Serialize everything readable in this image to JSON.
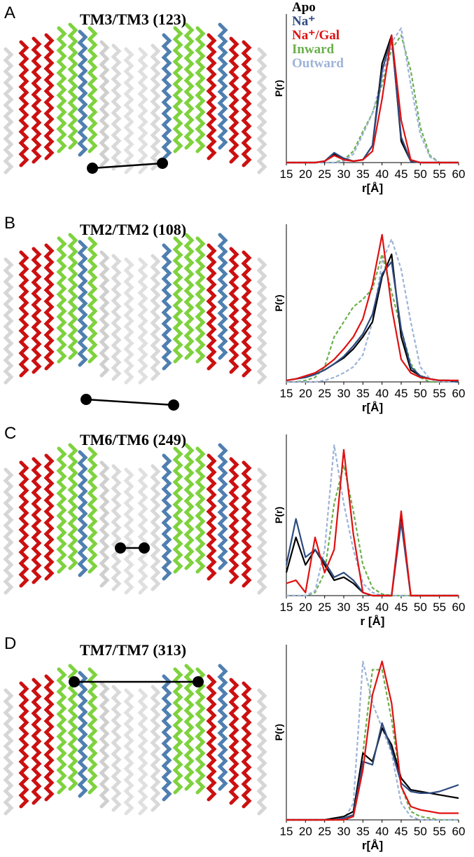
{
  "chart_data": [
    {
      "type": "line",
      "panel": "A",
      "title": "TM3/TM3 (123)",
      "x_label": "r[Å]",
      "y_label": "P(r)",
      "legend": "top-left",
      "x": [
        15,
        17.5,
        20,
        22.5,
        25,
        27.5,
        30,
        32.5,
        35,
        37.5,
        40,
        42.5,
        45,
        47.5,
        50,
        52.5,
        55,
        57.5,
        60
      ],
      "xlim": [
        15,
        60
      ],
      "xticks": [
        15,
        20,
        25,
        30,
        35,
        40,
        45,
        50,
        55,
        60
      ],
      "ylim": [
        0,
        1.05
      ],
      "series": [
        {
          "name": "Apo",
          "color": "#000000",
          "dash": false,
          "values": [
            0,
            0,
            0,
            0,
            0.01,
            0.06,
            0.03,
            0.01,
            0.02,
            0.12,
            0.7,
            0.9,
            0.15,
            0.01,
            0,
            0,
            0,
            0,
            0
          ]
        },
        {
          "name": "Na⁺",
          "color": "#2e4a80",
          "dash": false,
          "values": [
            0,
            0,
            0,
            0,
            0.01,
            0.07,
            0.03,
            0.01,
            0.02,
            0.12,
            0.65,
            0.88,
            0.18,
            0.01,
            0,
            0,
            0,
            0,
            0
          ]
        },
        {
          "name": "Na⁺/Gal",
          "color": "#e01010",
          "dash": false,
          "values": [
            0,
            0,
            0,
            0,
            0.01,
            0.05,
            0.02,
            0.01,
            0.02,
            0.08,
            0.45,
            0.9,
            0.3,
            0.02,
            0,
            0,
            0,
            0,
            0
          ]
        },
        {
          "name": "Inward",
          "color": "#6ab04c",
          "dash": true,
          "values": [
            0,
            0,
            0,
            0,
            0,
            0,
            0.02,
            0.08,
            0.22,
            0.35,
            0.55,
            0.8,
            0.9,
            0.65,
            0.25,
            0.05,
            0,
            0,
            0
          ]
        },
        {
          "name": "Outward",
          "color": "#9db3d8",
          "dash": true,
          "values": [
            0,
            0,
            0,
            0,
            0,
            0,
            0.01,
            0.06,
            0.2,
            0.35,
            0.6,
            0.85,
            0.95,
            0.55,
            0.2,
            0.04,
            0,
            0,
            0
          ]
        }
      ]
    },
    {
      "type": "line",
      "panel": "B",
      "title": "TM2/TM2 (108)",
      "x_label": "r[Å]",
      "y_label": "P(r)",
      "x": [
        15,
        17.5,
        20,
        22.5,
        25,
        27.5,
        30,
        32.5,
        35,
        37.5,
        40,
        42.5,
        45,
        47.5,
        50,
        52.5,
        55,
        57.5,
        60
      ],
      "xlim": [
        15,
        60
      ],
      "xticks": [
        15,
        20,
        25,
        30,
        35,
        40,
        45,
        50,
        55,
        60
      ],
      "ylim": [
        0,
        1.05
      ],
      "series": [
        {
          "color": "#000000",
          "dash": false,
          "values": [
            0.01,
            0.02,
            0.03,
            0.05,
            0.08,
            0.12,
            0.16,
            0.22,
            0.3,
            0.4,
            0.7,
            0.85,
            0.3,
            0.08,
            0.04,
            0.02,
            0.01,
            0.01,
            0
          ]
        },
        {
          "color": "#2e4a80",
          "dash": false,
          "values": [
            0.01,
            0.02,
            0.03,
            0.05,
            0.08,
            0.12,
            0.17,
            0.24,
            0.32,
            0.45,
            0.72,
            0.8,
            0.35,
            0.1,
            0.04,
            0.02,
            0.01,
            0.01,
            0
          ]
        },
        {
          "color": "#e01010",
          "dash": false,
          "values": [
            0.01,
            0.02,
            0.04,
            0.06,
            0.1,
            0.15,
            0.22,
            0.3,
            0.42,
            0.65,
            0.98,
            0.5,
            0.15,
            0.06,
            0.03,
            0.02,
            0.01,
            0.01,
            0.01
          ]
        },
        {
          "color": "#6ab04c",
          "dash": true,
          "values": [
            0,
            0,
            0.01,
            0.03,
            0.1,
            0.3,
            0.4,
            0.5,
            0.55,
            0.62,
            0.85,
            0.6,
            0.35,
            0.12,
            0.03,
            0,
            0,
            0,
            0
          ]
        },
        {
          "color": "#9db3d8",
          "dash": true,
          "values": [
            0,
            0,
            0,
            0,
            0.01,
            0.03,
            0.06,
            0.1,
            0.18,
            0.4,
            0.8,
            0.95,
            0.75,
            0.4,
            0.1,
            0.02,
            0,
            0,
            0
          ]
        }
      ]
    },
    {
      "type": "line",
      "panel": "C",
      "title": "TM6/TM6 (249)",
      "x_label": "r [Å]",
      "y_label": "P(r)",
      "x": [
        15,
        17.5,
        20,
        22.5,
        25,
        27.5,
        30,
        32.5,
        35,
        37.5,
        40,
        42.5,
        45,
        47.5,
        50,
        52.5,
        55,
        57.5,
        60
      ],
      "xlim": [
        15,
        60
      ],
      "xticks": [
        15,
        20,
        25,
        30,
        35,
        40,
        45,
        50,
        55,
        60
      ],
      "ylim": [
        0,
        1.05
      ],
      "series": [
        {
          "color": "#000000",
          "dash": false,
          "values": [
            0.15,
            0.38,
            0.2,
            0.3,
            0.2,
            0.1,
            0.12,
            0.08,
            0.02,
            0,
            0,
            0,
            0.5,
            0,
            0,
            0,
            0,
            0,
            0
          ]
        },
        {
          "color": "#2e4a80",
          "dash": false,
          "values": [
            0.2,
            0.5,
            0.25,
            0.3,
            0.22,
            0.12,
            0.15,
            0.1,
            0.02,
            0,
            0,
            0,
            0.48,
            0,
            0,
            0,
            0,
            0,
            0
          ]
        },
        {
          "color": "#e01010",
          "dash": false,
          "values": [
            0.08,
            0.1,
            0.02,
            0.38,
            0.15,
            0.3,
            0.95,
            0.4,
            0.02,
            0,
            0,
            0,
            0.55,
            0,
            0,
            0,
            0,
            0,
            0
          ]
        },
        {
          "color": "#6ab04c",
          "dash": true,
          "values": [
            0,
            0,
            0,
            0.02,
            0.15,
            0.6,
            0.85,
            0.55,
            0.2,
            0.05,
            0.01,
            0,
            0,
            0,
            0,
            0,
            0,
            0,
            0
          ]
        },
        {
          "color": "#9db3d8",
          "dash": true,
          "values": [
            0,
            0,
            0,
            0.03,
            0.3,
            0.98,
            0.6,
            0.3,
            0.08,
            0.02,
            0,
            0,
            0,
            0,
            0,
            0,
            0,
            0,
            0
          ]
        }
      ]
    },
    {
      "type": "line",
      "panel": "D",
      "title": "TM7/TM7 (313)",
      "x_label": "r[Å]",
      "y_label": "P(r)",
      "x": [
        15,
        17.5,
        20,
        22.5,
        25,
        27.5,
        30,
        32.5,
        35,
        37.5,
        40,
        42.5,
        45,
        47.5,
        50,
        52.5,
        55,
        57.5,
        60
      ],
      "xlim": [
        15,
        60
      ],
      "xticks": [
        15,
        20,
        25,
        30,
        35,
        40,
        45,
        50,
        55,
        60
      ],
      "ylim": [
        0,
        1.05
      ],
      "series": [
        {
          "color": "#000000",
          "dash": false,
          "values": [
            0,
            0,
            0,
            0,
            0,
            0.01,
            0.02,
            0.05,
            0.4,
            0.35,
            0.55,
            0.45,
            0.25,
            0.18,
            0.17,
            0.16,
            0.15,
            0.14,
            0.13
          ]
        },
        {
          "color": "#2e4a80",
          "dash": false,
          "values": [
            0,
            0,
            0,
            0,
            0,
            0,
            0.01,
            0.03,
            0.35,
            0.33,
            0.58,
            0.42,
            0.22,
            0.17,
            0.16,
            0.16,
            0.17,
            0.19,
            0.21
          ]
        },
        {
          "color": "#e01010",
          "dash": false,
          "values": [
            0,
            0,
            0,
            0,
            0,
            0,
            0,
            0.02,
            0.3,
            0.75,
            0.95,
            0.7,
            0.2,
            0.08,
            0.06,
            0.05,
            0.04,
            0.04,
            0.04
          ]
        },
        {
          "color": "#6ab04c",
          "dash": true,
          "values": [
            0,
            0,
            0,
            0,
            0,
            0,
            0,
            0.03,
            0.4,
            0.9,
            0.9,
            0.6,
            0.2,
            0.05,
            0.02,
            0.01,
            0,
            0,
            0
          ]
        },
        {
          "color": "#9db3d8",
          "dash": true,
          "values": [
            0,
            0,
            0,
            0,
            0,
            0,
            0,
            0.1,
            0.95,
            0.7,
            0.55,
            0.4,
            0.1,
            0.02,
            0,
            0,
            0,
            0,
            0
          ]
        }
      ]
    }
  ]
}
